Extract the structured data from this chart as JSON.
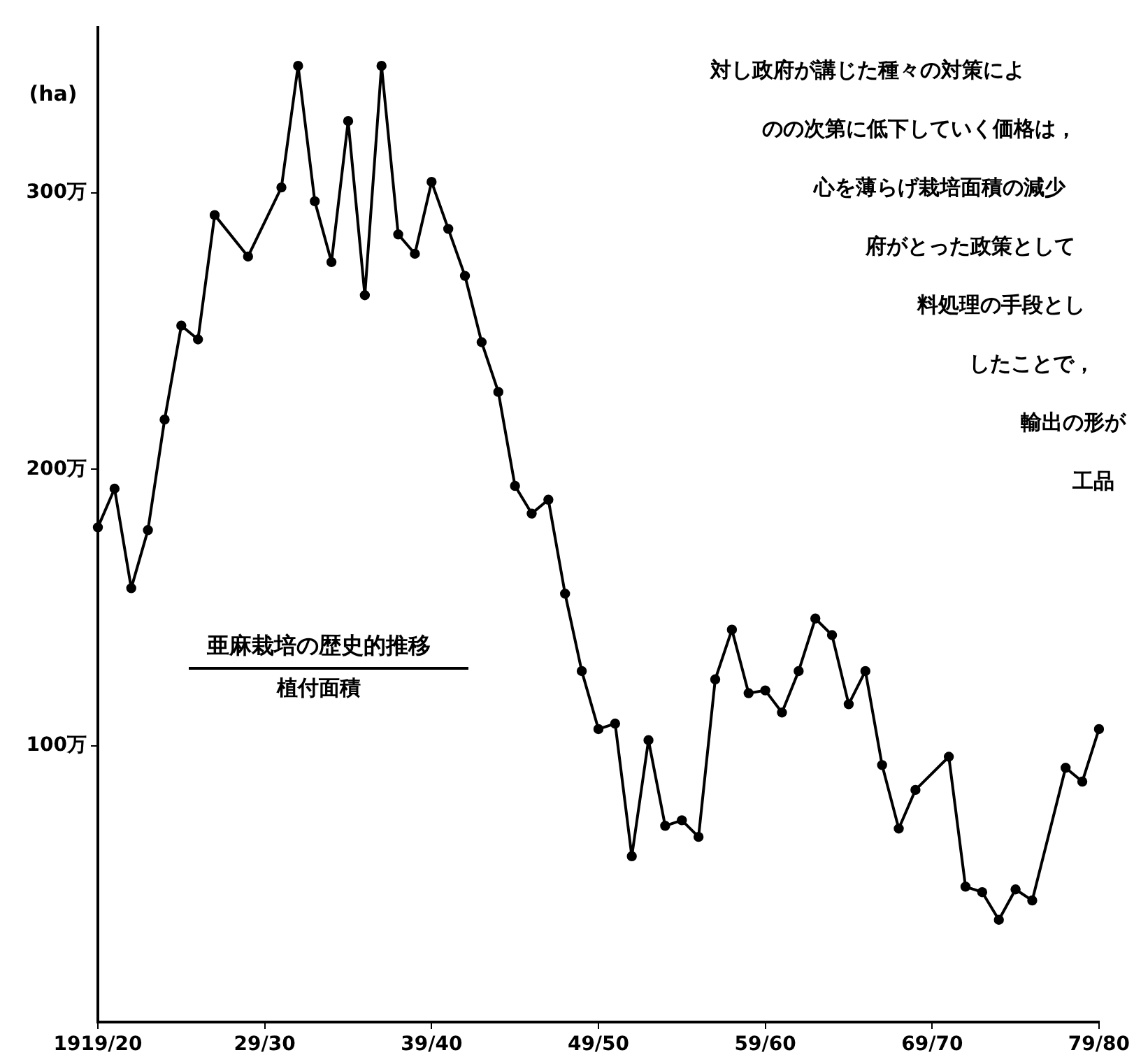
{
  "chart_data": {
    "type": "line",
    "title": "亜麻栽培の歴史的推移",
    "subtitle": "植付面積",
    "ylabel": "(ha)",
    "annotations": [
      "対し政府が講じた種々の対策によ",
      "のの次第に低下していく価格は，",
      "心を薄らげ栽培面積の減少",
      "府がとった政策として",
      "料処理の手段とし",
      "したことで，",
      "輸出の形が",
      "工品"
    ],
    "categories": [
      "1919/20",
      null,
      null,
      null,
      null,
      null,
      null,
      null,
      null,
      null,
      "29/30",
      null,
      null,
      null,
      null,
      null,
      null,
      null,
      null,
      null,
      "39/40",
      null,
      null,
      null,
      null,
      null,
      null,
      null,
      null,
      null,
      "49/50",
      null,
      null,
      null,
      null,
      null,
      null,
      null,
      null,
      null,
      "59/60",
      null,
      null,
      null,
      null,
      null,
      null,
      null,
      null,
      null,
      "69/70",
      null,
      null,
      null,
      null,
      null,
      null,
      null,
      null,
      null,
      "79/80"
    ],
    "series": [
      {
        "color": "#000000",
        "values": [
          179,
          193,
          157,
          178,
          218,
          252,
          247,
          292,
          null,
          277,
          null,
          302,
          346,
          297,
          275,
          326,
          263,
          346,
          285,
          278,
          304,
          287,
          270,
          246,
          228,
          194,
          184,
          189,
          155,
          127,
          106,
          108,
          60,
          102,
          71,
          73,
          67,
          124,
          142,
          119,
          120,
          112,
          127,
          146,
          140,
          115,
          127,
          93,
          70,
          84,
          null,
          96,
          49,
          47,
          37,
          48,
          44,
          null,
          92,
          87,
          106
        ]
      }
    ],
    "ylim": [
      0,
      360
    ],
    "yticks": [
      {
        "value": 100,
        "label": "100万"
      },
      {
        "value": 200,
        "label": "200万"
      },
      {
        "value": 300,
        "label": "300万"
      }
    ],
    "marker": "circle",
    "line_style": "solid"
  }
}
